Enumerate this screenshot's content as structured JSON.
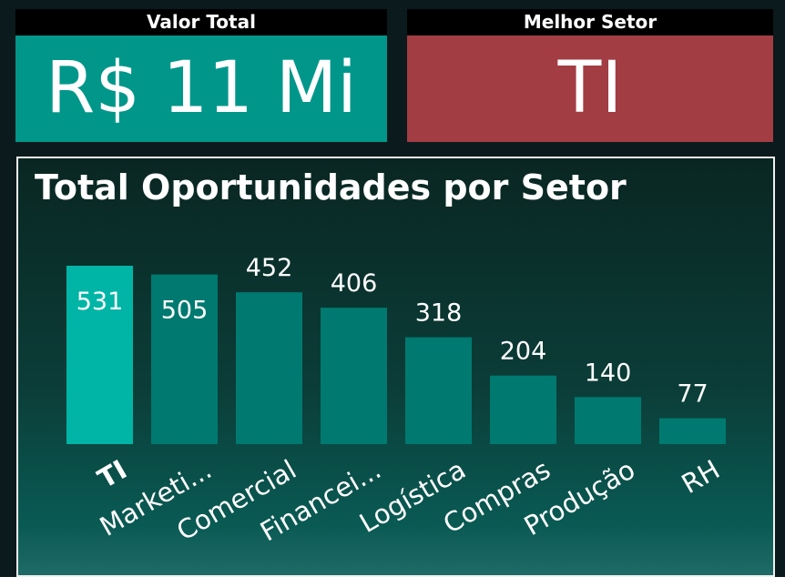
{
  "cards": {
    "total": {
      "label": "Valor Total",
      "value": "R$ 11 Mi"
    },
    "best_sector": {
      "label": "Melhor Setor",
      "value": "TI"
    }
  },
  "colors": {
    "highlight_bar": "#00b5a6",
    "bar": "#007a70",
    "total_card": "#00978a",
    "best_card": "#a23d44"
  },
  "chart_data": {
    "type": "bar",
    "title": "Total Oportunidades por Setor",
    "categories": [
      "TI",
      "Marketi...",
      "Comercial",
      "Financei...",
      "Logística",
      "Compras",
      "Produção",
      "RH"
    ],
    "values": [
      531,
      505,
      452,
      406,
      318,
      204,
      140,
      77
    ],
    "highlight": "TI",
    "xlabel": "",
    "ylabel": "",
    "ylim": [
      0,
      531
    ],
    "grid": false
  }
}
